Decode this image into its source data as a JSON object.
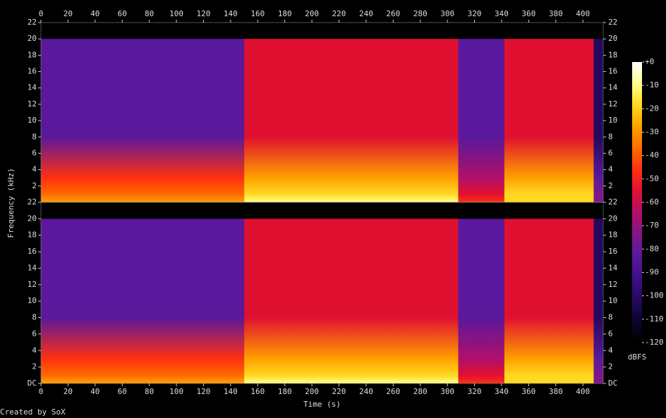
{
  "footer": "Created by SoX",
  "chart_data": [
    {
      "type": "spectrogram",
      "ylabel": "Frequency (kHz)",
      "x_axis_position": "top",
      "xlim": [
        0,
        415
      ],
      "xticks": [
        0,
        20,
        40,
        60,
        80,
        100,
        120,
        140,
        160,
        180,
        200,
        220,
        240,
        260,
        280,
        300,
        320,
        340,
        360,
        380,
        400
      ],
      "ylim": [
        0,
        22
      ],
      "yticks": [
        2,
        4,
        6,
        8,
        10,
        12,
        14,
        16,
        18,
        20,
        22
      ],
      "content_max": 20,
      "segments": [
        {
          "start": 0,
          "end": 150,
          "level": -85,
          "low_level": -25
        },
        {
          "start": 150,
          "end": 308,
          "level": -55,
          "low_level": -12
        },
        {
          "start": 308,
          "end": 342,
          "level": -85,
          "low_level": -50
        },
        {
          "start": 342,
          "end": 408,
          "level": -55,
          "low_level": -15
        },
        {
          "start": 408,
          "end": 415,
          "level": -100,
          "low_level": -70
        }
      ]
    },
    {
      "type": "spectrogram",
      "xlabel": "Time (s)",
      "x_axis_position": "bottom",
      "xlim": [
        0,
        415
      ],
      "xticks": [
        0,
        20,
        40,
        60,
        80,
        100,
        120,
        140,
        160,
        180,
        200,
        220,
        240,
        260,
        280,
        300,
        320,
        340,
        360,
        380,
        400
      ],
      "ylim": [
        0,
        22
      ],
      "yticks": [
        {
          "value": 0,
          "label": "DC"
        },
        2,
        4,
        6,
        8,
        10,
        12,
        14,
        16,
        18,
        20,
        22
      ],
      "content_max": 20,
      "segments": [
        {
          "start": 0,
          "end": 150,
          "level": -85,
          "low_level": -25
        },
        {
          "start": 150,
          "end": 308,
          "level": -55,
          "low_level": -12
        },
        {
          "start": 308,
          "end": 342,
          "level": -85,
          "low_level": -50
        },
        {
          "start": 342,
          "end": 408,
          "level": -55,
          "low_level": -15
        },
        {
          "start": 408,
          "end": 415,
          "level": -100,
          "low_level": -70
        }
      ]
    },
    {
      "type": "colorbar",
      "label": "dBFS",
      "ylim": [
        -120,
        0
      ],
      "yticks": [
        {
          "value": 0,
          "label": "+0"
        },
        -10,
        -20,
        -30,
        -40,
        -50,
        -60,
        -70,
        -80,
        -90,
        -100,
        -110,
        -120
      ],
      "colors": [
        "#000000",
        "#0a0530",
        "#24095e",
        "#3d0f8a",
        "#5a189c",
        "#80168c",
        "#b0106a",
        "#e01030",
        "#ff3010",
        "#ff6a00",
        "#ffa000",
        "#ffd820",
        "#ffff90",
        "#ffffff"
      ]
    }
  ]
}
